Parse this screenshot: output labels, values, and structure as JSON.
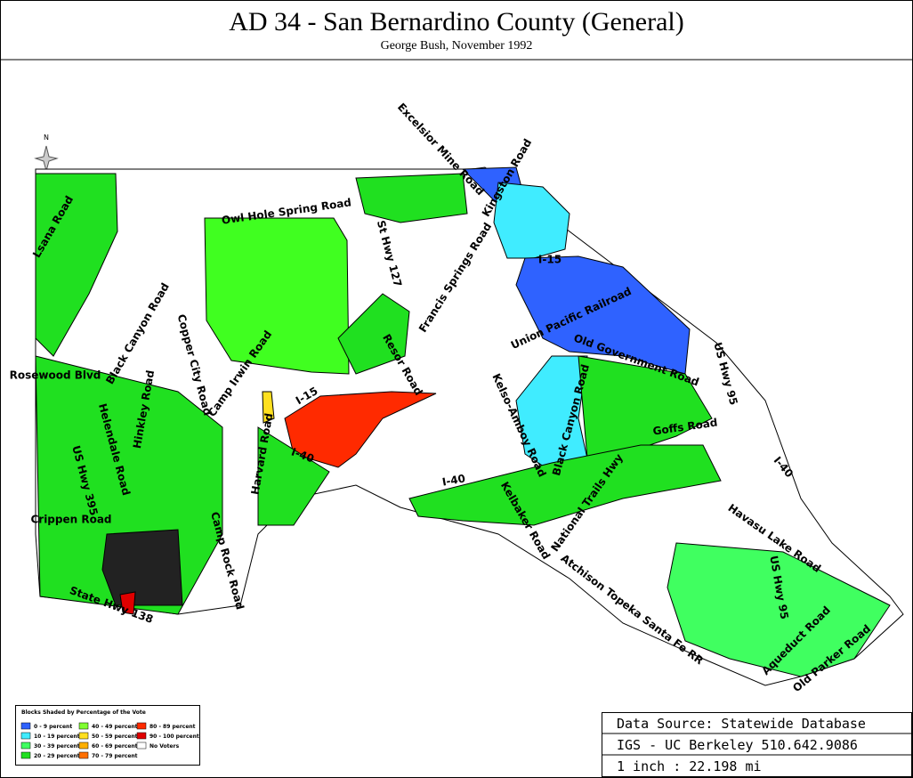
{
  "header": {
    "title": "AD 34 - San Bernardino County (General)",
    "subtitle": "George Bush, November 1992"
  },
  "north": "N",
  "roads": [
    "Excelsior Mine Road",
    "Kingston Road",
    "Owl Hole Spring Road",
    "Lsana Road",
    "St Hwy 127",
    "Francis Springs Road",
    "I-15",
    "Union Pacific Railroad",
    "Old Government Road",
    "US Hwy 95",
    "Resor Road",
    "I-15",
    "Kelso-Amboy Road",
    "Black Canyon Road",
    "Goffs Road",
    "I-40",
    "I-40",
    "I-40",
    "Kelbaker Road",
    "National Trails Hwy",
    "Atchison Topeka Santa Fe RR",
    "Havasu Lake Road",
    "US Hwy 95",
    "Aqueduct Road",
    "Old Parker Road",
    "Rosewood Blvd",
    "Black Canyon Road",
    "Camp Irwin Road",
    "Copper City Road",
    "Hinkley Road",
    "Harvard Road",
    "Helendale Road",
    "US Hwy 395",
    "Crippen Road",
    "Camp Rock Road",
    "State Hwy 138"
  ],
  "legend": {
    "title": "Blocks Shaded by Percentage of the Vote",
    "items": [
      {
        "label": "0 - 9 percent",
        "color": "#2f62ff"
      },
      {
        "label": "10 - 19 percent",
        "color": "#40ecff"
      },
      {
        "label": "30 - 39 percent",
        "color": "#40ff60"
      },
      {
        "label": "20 - 29 percent",
        "color": "#20e020"
      },
      {
        "label": "40 - 49 percent",
        "color": "#80ff30"
      },
      {
        "label": "50 - 59 percent",
        "color": "#ffe020"
      },
      {
        "label": "60 - 69 percent",
        "color": "#ffb000"
      },
      {
        "label": "70 - 79 percent",
        "color": "#ff7000"
      },
      {
        "label": "80 - 89 percent",
        "color": "#ff2a00"
      },
      {
        "label": "90 - 100 percent",
        "color": "#e00000"
      },
      {
        "label": "No Voters",
        "color": "#ffffff"
      }
    ]
  },
  "source": {
    "line1": "Data Source: Statewide Database",
    "line2": "IGS - UC Berkeley 510.642.9086",
    "line3": "1 inch : 22.198 mi"
  }
}
